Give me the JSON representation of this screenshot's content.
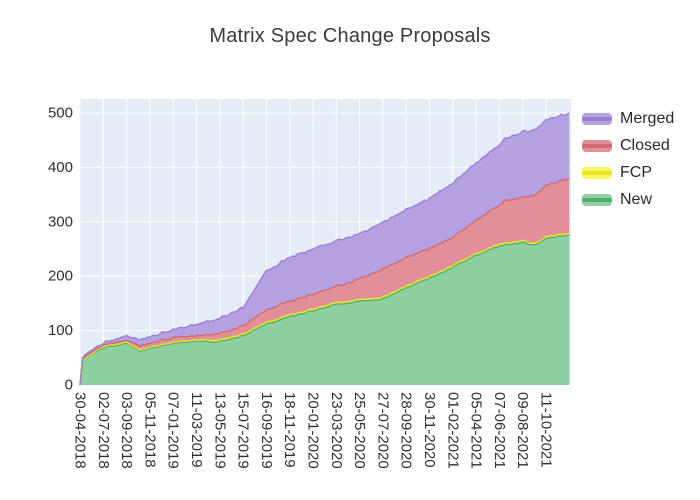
{
  "chart_data": {
    "type": "area",
    "stacked": true,
    "title": "Matrix Spec Change Proposals",
    "plot_bg": "#e5ecf6",
    "grid_color": "#ffffff",
    "tick_label_color": "#2f2f2f",
    "y_ticks": [
      0,
      100,
      200,
      300,
      400,
      500
    ],
    "y_range": [
      0,
      526
    ],
    "x_tick_labels": [
      "30-04-2018",
      "02-07-2018",
      "03-09-2018",
      "05-11-2018",
      "07-01-2019",
      "11-03-2019",
      "13-05-2019",
      "15-07-2019",
      "16-09-2019",
      "18-11-2019",
      "20-01-2020",
      "23-03-2020",
      "25-05-2020",
      "27-07-2020",
      "28-09-2020",
      "30-11-2020",
      "01-02-2021",
      "05-04-2021",
      "07-06-2021",
      "09-08-2021",
      "11-10-2021"
    ],
    "sample_dates": [
      "30-04-2018",
      "07-05-2018",
      "21-05-2018",
      "02-07-2018",
      "03-09-2018",
      "08-10-2018",
      "05-11-2018",
      "07-01-2019",
      "11-03-2019",
      "13-05-2019",
      "15-07-2019",
      "16-09-2019",
      "18-11-2019",
      "20-01-2020",
      "23-03-2020",
      "25-05-2020",
      "27-07-2020",
      "28-09-2020",
      "30-11-2020",
      "01-02-2021",
      "05-04-2021",
      "07-06-2021",
      "21-06-2021",
      "09-08-2021",
      "13-09-2021",
      "11-10-2021",
      "13-12-2021"
    ],
    "series": [
      {
        "name": "New",
        "fill": "#8ecf9f",
        "line": "#4fae6d",
        "values": [
          0,
          44,
          52,
          69,
          76,
          63,
          67,
          77,
          80,
          80,
          90,
          112,
          126,
          137,
          148,
          154,
          158,
          179,
          196,
          217,
          238,
          256,
          257,
          262,
          257,
          270,
          276
        ]
      },
      {
        "name": "FCP",
        "fill": "#f9f75f",
        "line": "#e8e427",
        "values": [
          0,
          1,
          1,
          2,
          2,
          2,
          2,
          2,
          2,
          3,
          3,
          3,
          3,
          3,
          3,
          3,
          3,
          3,
          3,
          3,
          3,
          3,
          3,
          3,
          3,
          3,
          3
        ]
      },
      {
        "name": "Closed",
        "fill": "#e1909a",
        "line": "#d26a71",
        "values": [
          0,
          2,
          3,
          3,
          4,
          8,
          8,
          8,
          8,
          12,
          15,
          23,
          25,
          27,
          30,
          38,
          52,
          52,
          52,
          52,
          61,
          71,
          78,
          80,
          90,
          94,
          101
        ]
      },
      {
        "name": "Merged",
        "fill": "#b5a1e2",
        "line": "#9b7fd4",
        "values": [
          0,
          3,
          4,
          4,
          8,
          10,
          12,
          14,
          21,
          27,
          34,
          72,
          81,
          83,
          83,
          83,
          85,
          88,
          92,
          100,
          105,
          112,
          113,
          120,
          120,
          120,
          120
        ]
      }
    ],
    "legend": [
      {
        "label": "Merged",
        "fill": "#b5a1e2",
        "line": "#9b7fd4"
      },
      {
        "label": "Closed",
        "fill": "#e1909a",
        "line": "#d26a71"
      },
      {
        "label": "FCP",
        "fill": "#f9f75f",
        "line": "#e8e427"
      },
      {
        "label": "New",
        "fill": "#8ecf9f",
        "line": "#4fae6d"
      }
    ]
  }
}
